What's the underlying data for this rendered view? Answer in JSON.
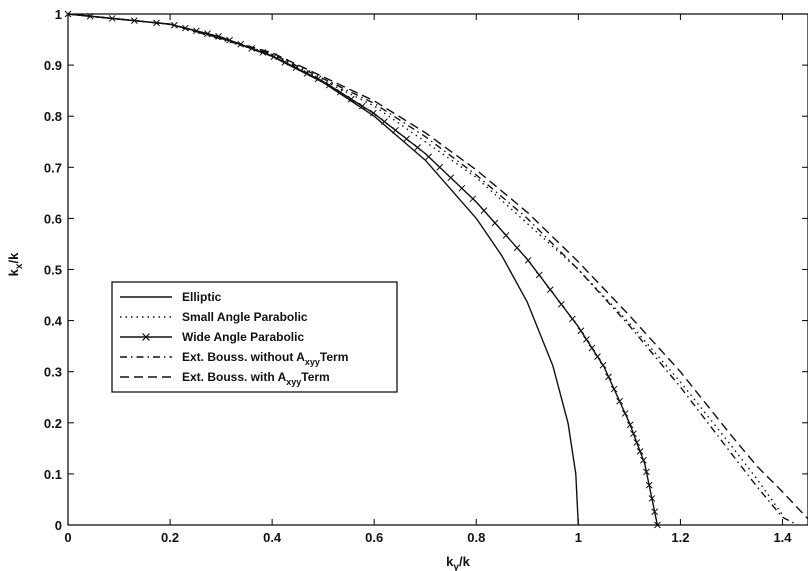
{
  "chart_data": {
    "type": "line",
    "title": "",
    "xlabel": {
      "main": "k",
      "sub": "y",
      "rest": "/k"
    },
    "ylabel": {
      "main": "k",
      "sub": "x",
      "rest": "/k"
    },
    "xlim": [
      0,
      1.45
    ],
    "ylim": [
      0,
      1
    ],
    "xticks": [
      0,
      0.2,
      0.4,
      0.6,
      0.8,
      1,
      1.2,
      1.4
    ],
    "xtick_labels": [
      "0",
      "0.2",
      "0.4",
      "0.6",
      "0.8",
      "1",
      "1.2",
      "1.4"
    ],
    "yticks": [
      0,
      0.1,
      0.2,
      0.3,
      0.4,
      0.5,
      0.6,
      0.7,
      0.8,
      0.9,
      1
    ],
    "ytick_labels": [
      "0",
      "0.1",
      "0.2",
      "0.3",
      "0.4",
      "0.5",
      "0.6",
      "0.7",
      "0.8",
      "0.9",
      "1"
    ],
    "grid": false,
    "legend_position": "center-left",
    "series": [
      {
        "name": "Elliptic",
        "style": "solid",
        "marker": "",
        "x": [
          0,
          0.2,
          0.3,
          0.4,
          0.5,
          0.6,
          0.7,
          0.8,
          0.85,
          0.9,
          0.95,
          0.98,
          0.995,
          1
        ],
        "y": [
          1,
          0.98,
          0.954,
          0.917,
          0.866,
          0.8,
          0.714,
          0.6,
          0.527,
          0.436,
          0.312,
          0.199,
          0.1,
          0
        ]
      },
      {
        "name": "Small Angle Parabolic",
        "style": "dotted",
        "marker": "",
        "x": [
          0,
          0.2,
          0.4,
          0.6,
          0.8,
          1.0,
          1.1,
          1.2,
          1.3,
          1.35,
          1.4
        ],
        "y": [
          1,
          0.98,
          0.92,
          0.82,
          0.68,
          0.5,
          0.395,
          0.28,
          0.155,
          0.09,
          0.02
        ]
      },
      {
        "name": "Wide Angle Parabolic",
        "style": "solid",
        "marker": "x",
        "x": [
          0,
          0.2,
          0.3,
          0.4,
          0.5,
          0.6,
          0.7,
          0.8,
          0.9,
          1.0,
          1.05,
          1.1,
          1.13,
          1.155
        ],
        "y": [
          1,
          0.98,
          0.955,
          0.918,
          0.868,
          0.805,
          0.727,
          0.632,
          0.52,
          0.388,
          0.31,
          0.2,
          0.12,
          0
        ]
      },
      {
        "name": "Ext. Bouss. without A_xyy Term",
        "style": "dashdot",
        "marker": "",
        "x": [
          0,
          0.2,
          0.4,
          0.6,
          0.7,
          0.8,
          0.9,
          1.0,
          1.1,
          1.2,
          1.3,
          1.35,
          1.4,
          1.43
        ],
        "y": [
          1,
          0.98,
          0.922,
          0.825,
          0.76,
          0.685,
          0.6,
          0.5,
          0.39,
          0.27,
          0.14,
          0.075,
          0.015,
          0
        ]
      },
      {
        "name": "Ext. Bouss. with A_xyy Term",
        "style": "dashed",
        "marker": "",
        "x": [
          0,
          0.2,
          0.4,
          0.6,
          0.7,
          0.8,
          0.9,
          1.0,
          1.1,
          1.2,
          1.3,
          1.35,
          1.4,
          1.45
        ],
        "y": [
          1,
          0.98,
          0.924,
          0.83,
          0.768,
          0.695,
          0.612,
          0.515,
          0.41,
          0.3,
          0.175,
          0.115,
          0.065,
          0.012
        ]
      }
    ],
    "legend": [
      {
        "text": "Elliptic",
        "sub": "",
        "tail": ""
      },
      {
        "text": "Small Angle Parabolic",
        "sub": "",
        "tail": ""
      },
      {
        "text": "Wide Angle Parabolic",
        "sub": "",
        "tail": ""
      },
      {
        "text": "Ext. Bouss. without A",
        "sub": "xyy",
        "tail": "Term"
      },
      {
        "text": "Ext. Bouss. with A",
        "sub": "xyy",
        "tail": "Term"
      }
    ]
  }
}
